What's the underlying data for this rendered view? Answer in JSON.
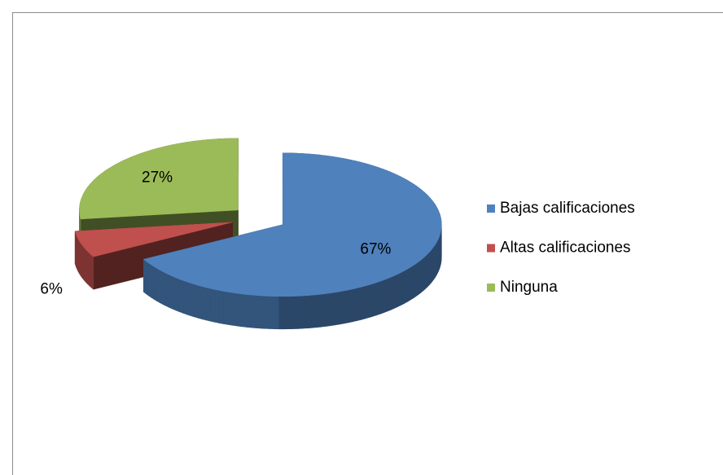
{
  "chart_data": {
    "type": "pie",
    "three_d": true,
    "exploded": true,
    "categories": [
      "Bajas calificaciones",
      "Altas calificaciones",
      "Ninguna"
    ],
    "values": [
      67,
      6,
      27
    ],
    "value_labels": [
      "67%",
      "6%",
      "27%"
    ],
    "colors": [
      "#4f81bd",
      "#c0504d",
      "#9bbb59"
    ],
    "legend": "right"
  }
}
